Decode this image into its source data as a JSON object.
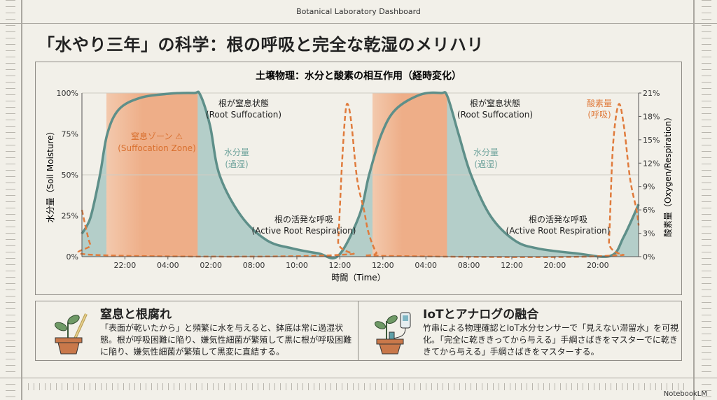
{
  "header": {
    "app_title": "Botanical Laboratory Dashboard",
    "title": "「水やり三年」の科学：根の呼吸と完全な乾湿のメリハリ"
  },
  "chart_data": {
    "type": "area",
    "title": "土壌物理：水分と酸素の相互作用（経時変化）",
    "xlabel": "時間（Time）",
    "ylabel": "水分量（Soil Moisture）",
    "y2label": "酸素量（Oxygen/Respiration）",
    "x_ticks": [
      "22:00",
      "04:00",
      "02:00",
      "08:00",
      "10:00",
      "12:00",
      "12:00",
      "04:00",
      "08:00",
      "12:00",
      "20:00",
      "20:00"
    ],
    "ylim": [
      0,
      100
    ],
    "y_ticks": [
      "0%",
      "25%",
      "50%",
      "75%",
      "100%"
    ],
    "y2lim": [
      0,
      21
    ],
    "y2_ticks": [
      "0%",
      "3%",
      "6%",
      "9%",
      "12%",
      "15%",
      "18%",
      "21%"
    ],
    "grid": "horizontal at 50%",
    "series": [
      {
        "name": "水分量",
        "axis": "left",
        "style": "solid area",
        "color": "#5e8f89",
        "points": [
          [
            0,
            14
          ],
          [
            0.2,
            24
          ],
          [
            0.42,
            50
          ],
          [
            0.59,
            75
          ],
          [
            0.86,
            90
          ],
          [
            1.35,
            97
          ],
          [
            2,
            99.5
          ],
          [
            2.6,
            100
          ],
          [
            2.75,
            99
          ],
          [
            2.98,
            80
          ],
          [
            3.2,
            50
          ],
          [
            3.7,
            25
          ],
          [
            4.3,
            10
          ],
          [
            4.9,
            5
          ],
          [
            5.5,
            2
          ],
          [
            5.96,
            0.5
          ],
          [
            6.45,
            25
          ],
          [
            6.68,
            50
          ],
          [
            6.97,
            75
          ],
          [
            7.3,
            90
          ],
          [
            7.87,
            99
          ],
          [
            8.35,
            100
          ],
          [
            8.5,
            98
          ],
          [
            8.76,
            75
          ],
          [
            9.05,
            50
          ],
          [
            9.5,
            25
          ],
          [
            10.06,
            10
          ],
          [
            10.6,
            5
          ],
          [
            11.5,
            2
          ],
          [
            12.3,
            0.5
          ],
          [
            12.6,
            12
          ],
          [
            12.95,
            32
          ]
        ]
      },
      {
        "name": "酸素量",
        "axis": "right",
        "style": "dashed line",
        "color": "#e07b3c",
        "points": [
          [
            0,
            6
          ],
          [
            0.1,
            3.5
          ],
          [
            0.2,
            1.5
          ],
          [
            0.37,
            0.2
          ],
          [
            5.9,
            0.2
          ],
          [
            5.96,
            2
          ],
          [
            6.05,
            12
          ],
          [
            6.13,
            18.5
          ],
          [
            6.19,
            19.5
          ],
          [
            6.27,
            17
          ],
          [
            6.4,
            10
          ],
          [
            6.56,
            6
          ],
          [
            6.67,
            3
          ],
          [
            6.85,
            0.5
          ],
          [
            7,
            0.1
          ],
          [
            12.2,
            0.1
          ],
          [
            12.26,
            2
          ],
          [
            12.35,
            14
          ],
          [
            12.48,
            19.5
          ],
          [
            12.6,
            17
          ],
          [
            12.75,
            10
          ],
          [
            12.9,
            6
          ],
          [
            12.95,
            4
          ]
        ]
      }
    ],
    "zones": [
      {
        "label": "窒息ゾーン ⚠",
        "sublabel": "(Suffocation Zone)",
        "from": 0.57,
        "to": 2.69
      },
      {
        "from": 6.76,
        "to": 8.49
      }
    ],
    "annotations": [
      {
        "text": "根が窒息状態",
        "sub": "(Root Suffocation)"
      },
      {
        "text": "水分量",
        "sub": "(過湿)"
      },
      {
        "text": "根の活発な呼吸",
        "sub": "(Active Root Respiration)"
      },
      {
        "text": "根が窒息状態",
        "sub": "(Root Suffocation)"
      },
      {
        "text": "水分量",
        "sub": "(過湿)"
      },
      {
        "text": "根の活発な呼吸",
        "sub": "(Active Root Respiration)"
      },
      {
        "text": "酸素量",
        "sub": "(呼吸)"
      }
    ],
    "colors": {
      "moisture_line": "#5e8f89",
      "moisture_fill": "#a9c8c3",
      "zone": "#eeae88",
      "oxygen": "#e07b3c"
    }
  },
  "cards": [
    {
      "title": "窒息と根腐れ",
      "body": "「表面が乾いたから」と頻繁に水を与えると、鉢底は常に過湿状態。根が呼吸困難に陥り、嫌気性細菌が繁殖して黒に根が呼吸困難に陥り、嫌気性細菌が繁殖して黒変に直結する。",
      "icon": "plant-pot-bamboo-stick-icon"
    },
    {
      "title": "IoTとアナログの融合",
      "body": "竹串による物理確認とIoT水分センサーで「見えない滞留水」を可視化。「完全に乾ききってから与える」手綱さばきをマスターでに乾ききてから与える」手綱さばきをマスターする。",
      "icon": "plant-pot-sensor-icon"
    }
  ],
  "brand": "NotebookLM"
}
